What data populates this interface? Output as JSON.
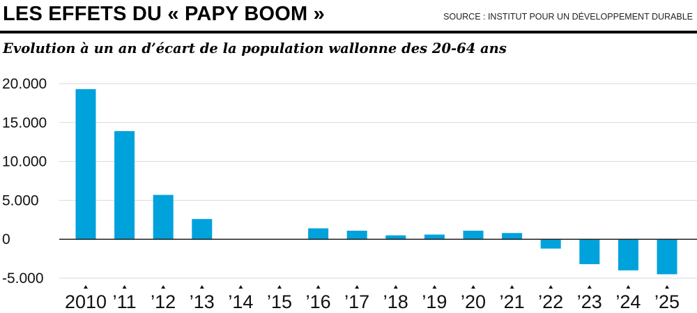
{
  "header": {
    "title": "LES EFFETS DU « PAPY BOOM »",
    "source": "SOURCE : INSTITUT POUR UN DÉVELOPPEMENT DURABLE"
  },
  "colors": {
    "bar": "#00a2dc",
    "grid": "#d9d9d9",
    "zero_line": "#222222"
  },
  "chart_data": {
    "type": "bar",
    "title": "Evolution à un an d’écart de la population wallonne des 20-64 ans",
    "xlabel": "",
    "ylabel": "",
    "categories": [
      "2010",
      "’11",
      "’12",
      "’13",
      "’14",
      "’15",
      "’16",
      "’17",
      "’18",
      "’19",
      "’20",
      "’21",
      "’22",
      "’23",
      "’24",
      "’25"
    ],
    "values": [
      19300,
      13900,
      5700,
      2600,
      0,
      0,
      1400,
      1100,
      500,
      600,
      1100,
      800,
      -1200,
      -3200,
      -4000,
      -4500
    ],
    "y_ticks": [
      20000,
      15000,
      10000,
      5000,
      0,
      -5000
    ],
    "y_tick_labels": [
      "20.000",
      "15.000",
      "10.000",
      "5.000",
      "0",
      "-5.000"
    ],
    "ylim": [
      -5000,
      20000
    ],
    "grid": true,
    "legend": "none"
  }
}
